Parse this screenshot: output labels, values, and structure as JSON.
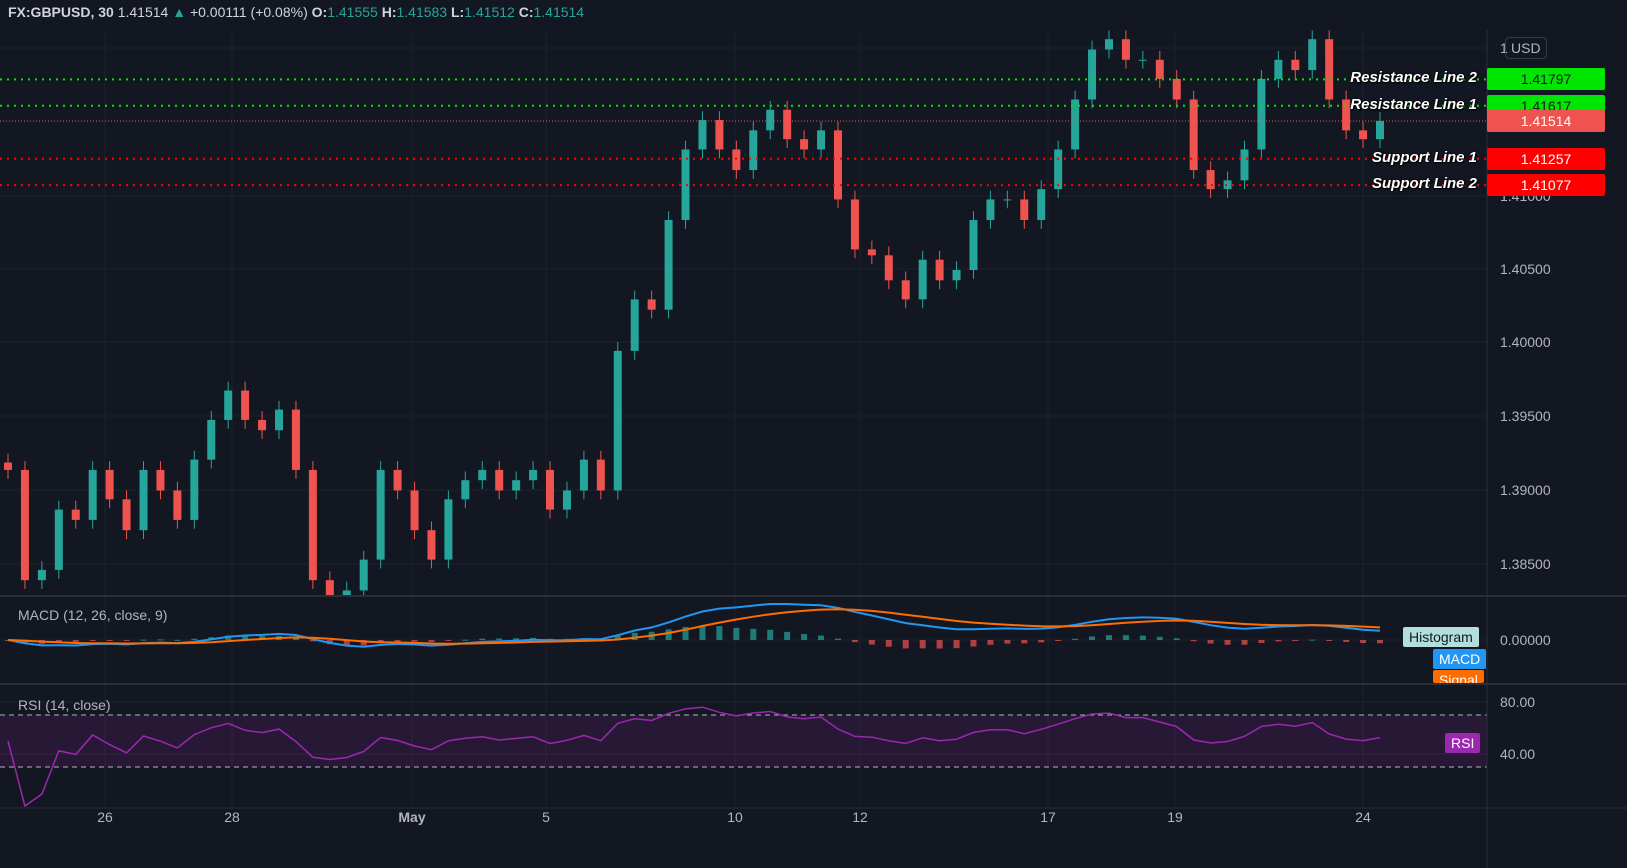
{
  "header": {
    "symbol": "FX:GBPUSD, 30",
    "last": "1.41514",
    "change": "+0.00111 (+0.08%)",
    "o_label": "O:",
    "open": "1.41555",
    "h_label": "H:",
    "high": "1.41583",
    "l_label": "L:",
    "low": "1.41512",
    "c_label": "C:",
    "close": "1.41514"
  },
  "currency_button": "USD",
  "colors": {
    "background": "#131722",
    "up": "#26a69a",
    "down": "#ef5350",
    "resistance": "#00e600",
    "support": "#ff0000",
    "macd": "#2196f3",
    "signal": "#ff6d00",
    "rsi": "#9c27b0"
  },
  "levels": [
    {
      "name": "Resistance Line 2",
      "value": "1.41797",
      "kind": "resistance"
    },
    {
      "name": "Resistance Line 1",
      "value": "1.41617",
      "kind": "resistance"
    },
    {
      "name": "",
      "value": "1.41514",
      "kind": "last"
    },
    {
      "name": "Support Line 1",
      "value": "1.41257",
      "kind": "support"
    },
    {
      "name": "Support Line 2",
      "value": "1.41077",
      "kind": "support"
    }
  ],
  "indicators": {
    "macd_title": "MACD (12, 26, close, 9)",
    "macd_legend": [
      "Histogram",
      "MACD",
      "Signal"
    ],
    "macd_axis": "0.00000",
    "rsi_title": "RSI (14, close)",
    "rsi_legend": "RSI",
    "rsi_axis": [
      "80.00",
      "40.00"
    ]
  },
  "chart_data": {
    "type": "candlestick",
    "price_ticks": [
      "1",
      "1.41000",
      "1.40500",
      "1.40000",
      "1.39500",
      "1.39000",
      "1.38500"
    ],
    "x_ticks": [
      "26",
      "28",
      "May",
      "5",
      "10",
      "12",
      "17",
      "19",
      "24"
    ],
    "ylim": [
      1.3825,
      1.4235
    ],
    "rsi_bands": [
      30,
      70
    ],
    "closes": [
      1.3914,
      1.3839,
      1.3846,
      1.3887,
      1.388,
      1.3914,
      1.3894,
      1.3873,
      1.3914,
      1.39,
      1.388,
      1.3921,
      1.3948,
      1.3968,
      1.3948,
      1.3941,
      1.3955,
      1.3914,
      1.3839,
      1.3825,
      1.3832,
      1.3853,
      1.3914,
      1.39,
      1.3873,
      1.3853,
      1.3894,
      1.3907,
      1.3914,
      1.39,
      1.3907,
      1.3914,
      1.3887,
      1.39,
      1.3921,
      1.39,
      1.3995,
      1.403,
      1.4023,
      1.4084,
      1.4132,
      1.4152,
      1.4132,
      1.4118,
      1.4145,
      1.4159,
      1.4139,
      1.4132,
      1.4145,
      1.4098,
      1.4064,
      1.406,
      1.4043,
      1.403,
      1.4057,
      1.4043,
      1.405,
      1.4084,
      1.4098,
      1.4098,
      1.4084,
      1.4105,
      1.4132,
      1.4166,
      1.42,
      1.4207,
      1.4193,
      1.4193,
      1.418,
      1.4166,
      1.4118,
      1.4105,
      1.4111,
      1.4132,
      1.418,
      1.4193,
      1.4186,
      1.4207,
      1.4166,
      1.4145,
      1.4139,
      1.41514
    ]
  }
}
